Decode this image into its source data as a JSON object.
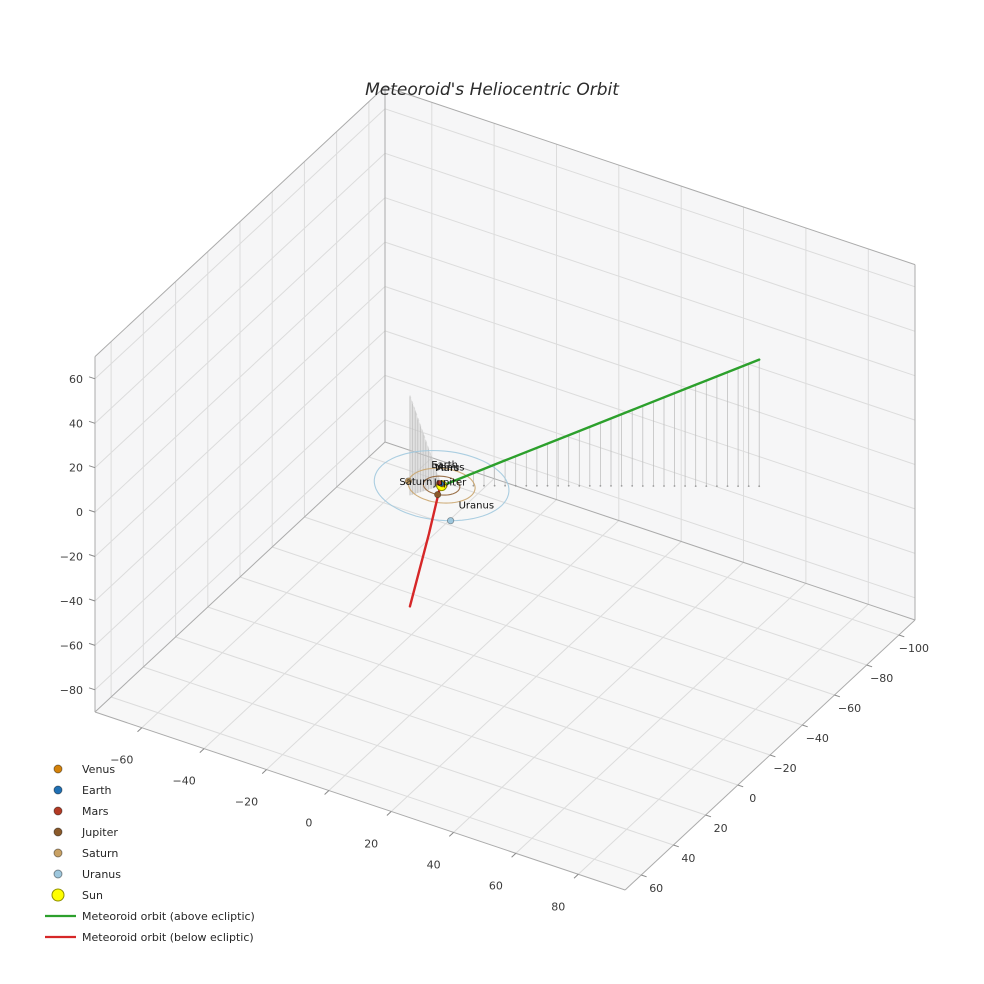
{
  "title": "Meteoroid's Heliocentric Orbit",
  "chart_data": {
    "type": "line",
    "projection": "3d",
    "title": "Meteoroid's Heliocentric Orbit",
    "grid": true,
    "legend_position": "lower left",
    "axes": {
      "x": {
        "range": [
          -75,
          95
        ],
        "ticks": [
          -60,
          -40,
          -20,
          0,
          20,
          40,
          60,
          80
        ]
      },
      "y": {
        "range": [
          -110,
          70
        ],
        "ticks": [
          -100,
          -80,
          -60,
          -40,
          -20,
          0,
          20,
          40,
          60
        ]
      },
      "z": {
        "range": [
          -90,
          70
        ],
        "ticks": [
          -80,
          -60,
          -40,
          -20,
          0,
          20,
          40,
          60
        ]
      }
    },
    "sun": {
      "label": "Sun",
      "position": [
        0,
        0,
        0
      ],
      "color": "#ffff00",
      "edge_color": "#8f8f00"
    },
    "planets": [
      {
        "name": "Venus",
        "orbit_radius": 0.72,
        "angle_deg": -100,
        "color": "#d4820a"
      },
      {
        "name": "Earth",
        "orbit_radius": 1.0,
        "angle_deg": -125,
        "color": "#2070b4"
      },
      {
        "name": "Mars",
        "orbit_radius": 1.52,
        "angle_deg": -145,
        "color": "#b33a24"
      },
      {
        "name": "Jupiter",
        "orbit_radius": 5.2,
        "angle_deg": 75,
        "color": "#8b5a2b"
      },
      {
        "name": "Saturn",
        "orbit_radius": 9.54,
        "angle_deg": 160,
        "color": "#c8a165"
      },
      {
        "name": "Uranus",
        "orbit_radius": 19.19,
        "angle_deg": 55,
        "color": "#9ec7dd"
      }
    ],
    "meteoroid": {
      "above": {
        "label": "Meteoroid orbit (above ecliptic)",
        "color": "#2ca02c",
        "points": [
          [
            0.8,
            -0.6,
            0.5
          ],
          [
            15,
            -10.4,
            11.4
          ],
          [
            30,
            -20.8,
            22.8
          ],
          [
            45,
            -31.2,
            34.2
          ],
          [
            60,
            -41.6,
            45.6
          ],
          [
            75,
            -52,
            57
          ]
        ]
      },
      "below": {
        "label": "Meteoroid orbit (below ecliptic)",
        "color": "#d62728",
        "points": [
          [
            -0.3,
            0.6,
            -1
          ],
          [
            -2,
            4,
            -20
          ],
          [
            -3.5,
            7,
            -35
          ],
          [
            -5,
            10,
            -50
          ]
        ]
      },
      "incoming_above": {
        "points": [
          [
            -5,
            10,
            45
          ],
          [
            0,
            0,
            0
          ]
        ]
      },
      "stems": {
        "color": "#bdbdbd",
        "count": 30
      }
    },
    "legend": [
      {
        "label": "Venus",
        "marker": "dot",
        "color": "#d4820a"
      },
      {
        "label": "Earth",
        "marker": "dot",
        "color": "#2070b4"
      },
      {
        "label": "Mars",
        "marker": "dot",
        "color": "#b33a24"
      },
      {
        "label": "Jupiter",
        "marker": "dot",
        "color": "#8b5a2b"
      },
      {
        "label": "Saturn",
        "marker": "dot",
        "color": "#c8a165"
      },
      {
        "label": "Uranus",
        "marker": "dot",
        "color": "#9ec7dd"
      },
      {
        "label": "Sun",
        "marker": "dot_large",
        "color": "#ffff00",
        "edge": "#8f8f00"
      },
      {
        "label": "Meteoroid orbit (above ecliptic)",
        "marker": "line",
        "color": "#2ca02c"
      },
      {
        "label": "Meteoroid orbit (below ecliptic)",
        "marker": "line",
        "color": "#d62728"
      }
    ]
  }
}
